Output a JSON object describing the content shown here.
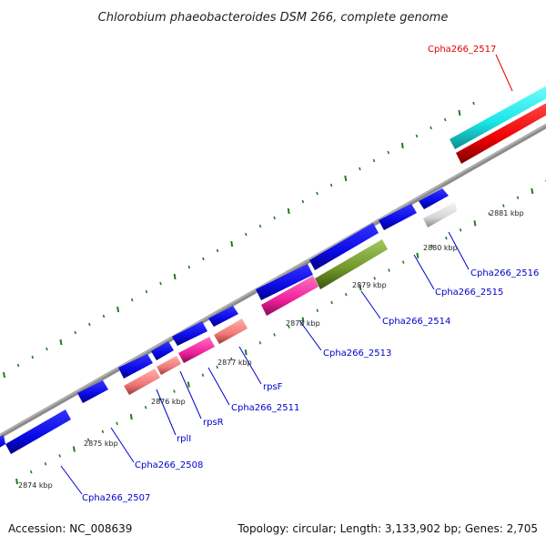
{
  "title": "Chlorobium phaeobacteroides DSM 266, complete genome",
  "footer": {
    "accession": "Accession: NC_008639",
    "summary": "Topology: circular; Length: 3,133,902 bp; Genes: 2,705"
  },
  "ticks": [
    "2874 kbp",
    "2875 kbp",
    "2876 kbp",
    "2877 kbp",
    "2878 kbp",
    "2879 kbp",
    "2880 kbp",
    "2881 kbp"
  ],
  "gene_labels": [
    {
      "text": "Cpha266_2517",
      "color": "#e00000"
    },
    {
      "text": "Cpha266_2516",
      "color": "#0000cc"
    },
    {
      "text": "Cpha266_2515",
      "color": "#0000cc"
    },
    {
      "text": "Cpha266_2514",
      "color": "#0000cc"
    },
    {
      "text": "Cpha266_2513",
      "color": "#0000cc"
    },
    {
      "text": "rpsF",
      "color": "#0000cc"
    },
    {
      "text": "Cpha266_2511",
      "color": "#0000cc"
    },
    {
      "text": "rpsR",
      "color": "#0000cc"
    },
    {
      "text": "rplI",
      "color": "#0000cc"
    },
    {
      "text": "Cpha266_2508",
      "color": "#0000cc"
    },
    {
      "text": "Cpha266_2507",
      "color": "#0000cc"
    }
  ],
  "colors": {
    "cds_blue": "#0a0ae6",
    "trna_cyan": "#19e6e6",
    "rrna_red": "#f00000",
    "pink": "#f07878",
    "magenta": "#f0209a",
    "olive": "#6e9628",
    "grey_gene": "#d6d6d6",
    "backbone": "#8c8c8c",
    "dots": "#1e7d1e"
  }
}
